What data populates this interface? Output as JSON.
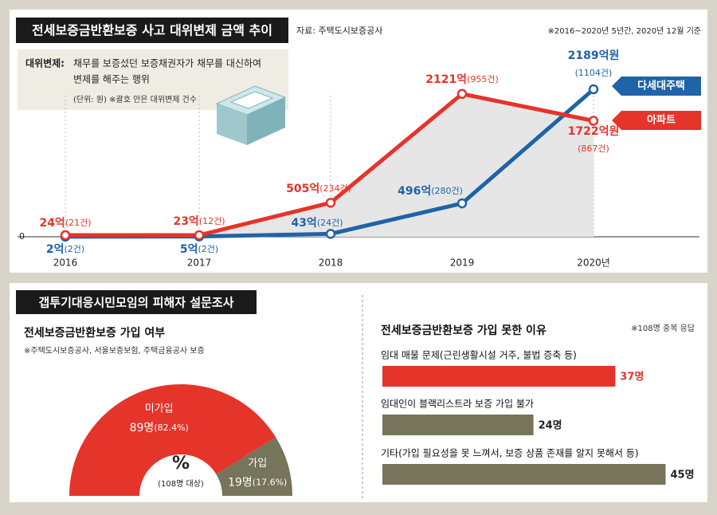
{
  "chart_data": [
    {
      "type": "line",
      "title": "전세보증금반환보증 사고 대위변제 금액 추이",
      "source": "자료: 주택도시보증공사",
      "note": "※2016~2020년 5년간, 2020년 12월 기준",
      "definition_label": "대위변제:",
      "definition_text": [
        "채무를 보증섰던 보증채권자가 채무를 대신하여",
        "변제를 해주는 행위"
      ],
      "unit_note": "(단위: 원) ※괄호 안은 대위변제 건수",
      "categories": [
        "2016",
        "2017",
        "2018",
        "2019",
        "2020년"
      ],
      "ylim": [
        0,
        3000
      ],
      "yticks": [
        0
      ],
      "series": [
        {
          "name": "다세대주택",
          "color": "#1f63a8",
          "values": [
            2,
            5,
            43,
            496,
            2189
          ],
          "value_labels": [
            "2억",
            "5억",
            "43억",
            "496억",
            "2189억원"
          ],
          "count_labels": [
            "(2건)",
            "(2건)",
            "(24건)",
            "(280건)",
            "(1104건)"
          ]
        },
        {
          "name": "아파트",
          "color": "#e5342a",
          "values": [
            24,
            23,
            505,
            2121,
            1722
          ],
          "value_labels": [
            "24억",
            "23억",
            "505억",
            "2121억",
            "1722억원"
          ],
          "count_labels": [
            "(21건)",
            "(12건)",
            "(234건)",
            "(955건)",
            "(867건)"
          ]
        }
      ]
    },
    {
      "type": "pie",
      "header": "갭투기대응시민모임의 피해자 설문조사",
      "title": "전세보증금반환보증 가입 여부",
      "subtitle": "※주택도시보증공사, 서울보증보험, 주택금융공사 보증",
      "center_label": "%",
      "center_note": "(108명 대상)",
      "categories": [
        "미가입",
        "가입"
      ],
      "values": [
        89,
        19
      ],
      "value_labels": [
        "89명",
        "19명"
      ],
      "percent_labels": [
        "(82.4%)",
        "(17.6%)"
      ],
      "colors": [
        "#e5342a",
        "#76745a"
      ]
    },
    {
      "type": "hbar",
      "title": "전세보증금반환보증 가입 못한 이유",
      "note": "※108명 중복 응답",
      "categories": [
        "임대 매물 문제(근린생활시설 거주, 불법 증축 등)",
        "임대인이 블랙리스트라 보증 가입 불가",
        "기타(가입 필요성을 못 느껴서, 보증 상품 존재를 알지 못해서 등)"
      ],
      "values": [
        37,
        24,
        45
      ],
      "value_labels": [
        "37명",
        "24명",
        "45명"
      ],
      "colors": [
        "#e5342a",
        "#76745a",
        "#76745a"
      ],
      "xlim": [
        0,
        50
      ]
    }
  ]
}
